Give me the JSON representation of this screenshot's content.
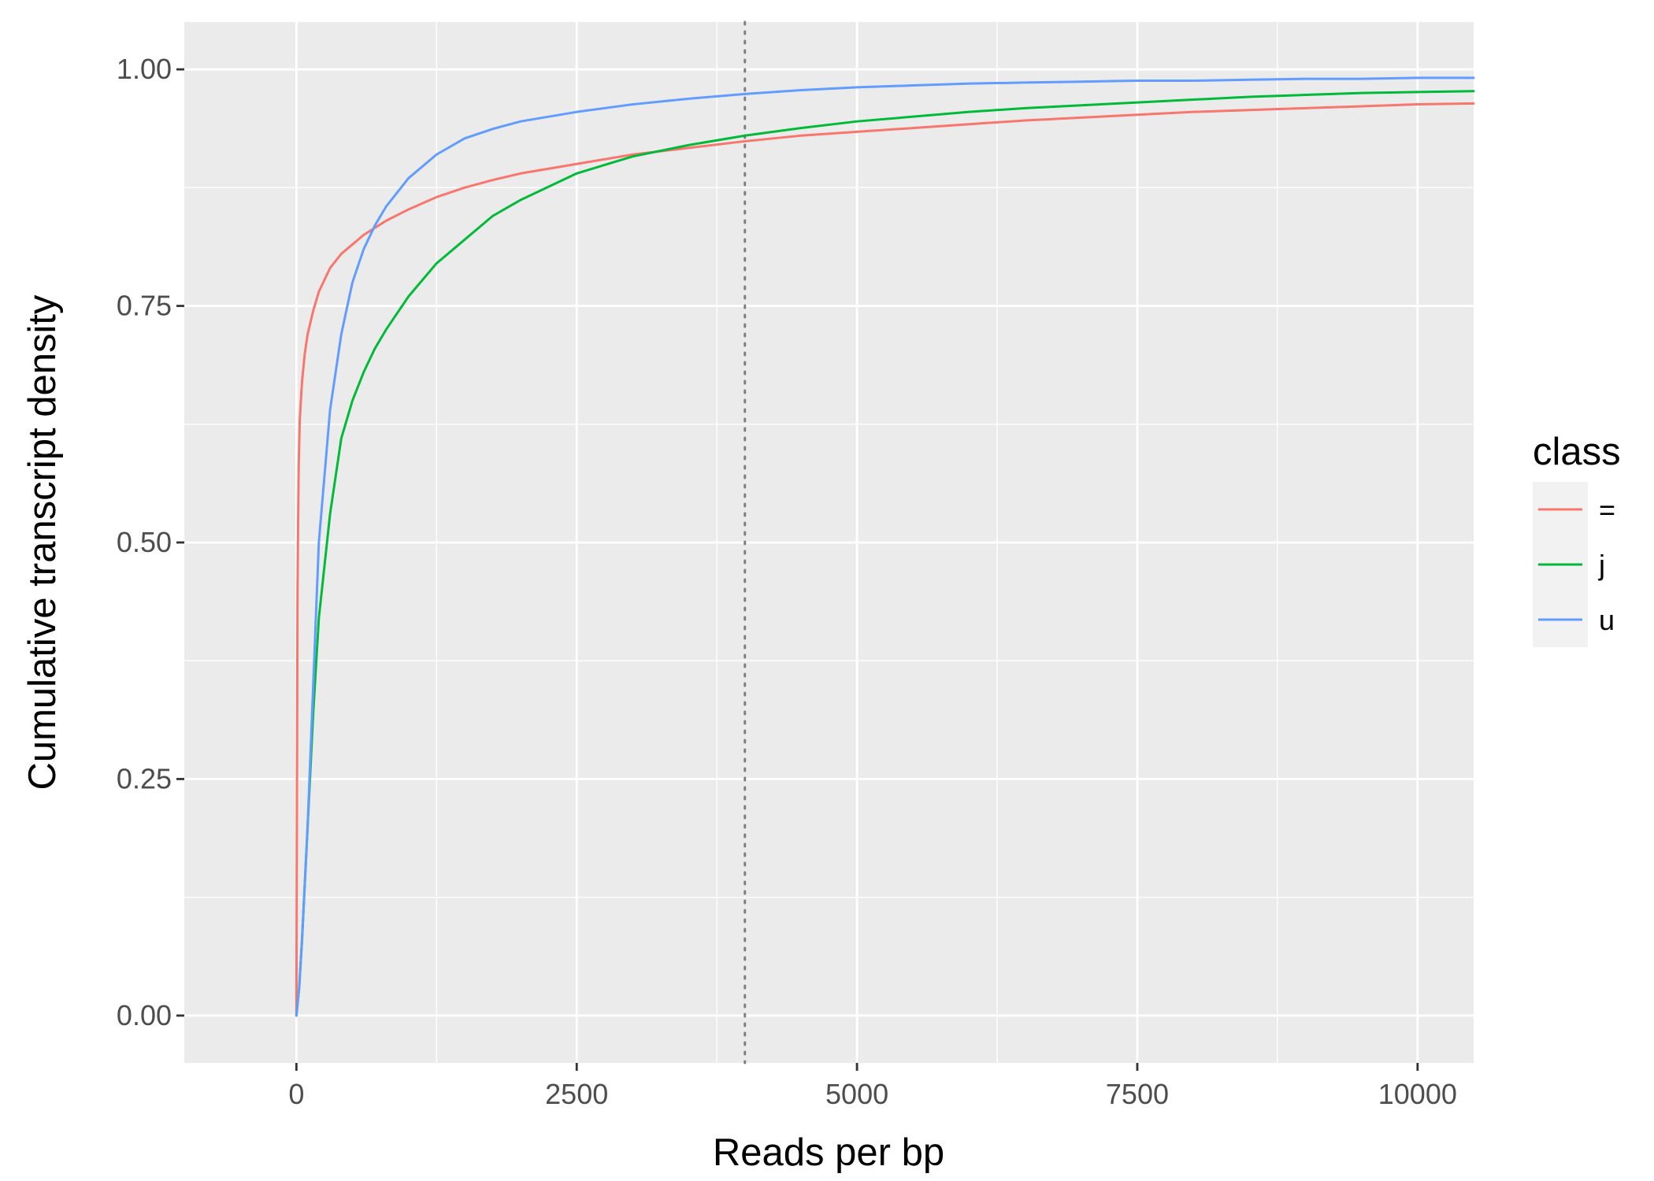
{
  "chart_data": {
    "type": "line",
    "title": "",
    "xlabel": "Reads per bp",
    "ylabel": "Cumulative transcript density",
    "xlim": [
      -1000,
      10500
    ],
    "ylim": [
      -0.05,
      1.05
    ],
    "x_ticks": [
      0,
      2500,
      5000,
      7500,
      10000
    ],
    "x_tick_labels": [
      "0",
      "2500",
      "5000",
      "7500",
      "10000"
    ],
    "y_ticks": [
      0,
      0.25,
      0.5,
      0.75,
      1.0
    ],
    "y_tick_labels": [
      "0.00",
      "0.25",
      "0.50",
      "0.75",
      "1.00"
    ],
    "grid": true,
    "panel_background": "#ebebeb",
    "reference_line": {
      "orientation": "vertical",
      "x": 4000,
      "style": "dotted",
      "color": "#7f7f7f"
    },
    "legend": {
      "title": "class",
      "position": "right"
    },
    "series": [
      {
        "name": "=",
        "color": "#f8766d",
        "x": [
          0,
          5,
          10,
          20,
          30,
          50,
          75,
          100,
          150,
          200,
          300,
          400,
          500,
          600,
          800,
          1000,
          1250,
          1500,
          1750,
          2000,
          2500,
          3000,
          3500,
          4000,
          4500,
          5000,
          5500,
          6000,
          6500,
          7000,
          7500,
          8000,
          8500,
          9000,
          9500,
          10000,
          10500
        ],
        "y": [
          0,
          0.25,
          0.45,
          0.58,
          0.63,
          0.67,
          0.7,
          0.72,
          0.745,
          0.765,
          0.79,
          0.805,
          0.815,
          0.825,
          0.84,
          0.852,
          0.865,
          0.875,
          0.883,
          0.89,
          0.9,
          0.91,
          0.917,
          0.924,
          0.93,
          0.934,
          0.938,
          0.942,
          0.946,
          0.949,
          0.952,
          0.955,
          0.957,
          0.959,
          0.961,
          0.963,
          0.964
        ]
      },
      {
        "name": "j",
        "color": "#00ba38",
        "x": [
          0,
          25,
          50,
          100,
          150,
          200,
          300,
          400,
          500,
          600,
          700,
          800,
          1000,
          1250,
          1500,
          1750,
          2000,
          2500,
          3000,
          3500,
          4000,
          4500,
          5000,
          5500,
          6000,
          6500,
          7000,
          7500,
          8000,
          8500,
          9000,
          9500,
          10000,
          10500
        ],
        "y": [
          0,
          0.03,
          0.08,
          0.2,
          0.32,
          0.42,
          0.53,
          0.61,
          0.65,
          0.68,
          0.705,
          0.725,
          0.76,
          0.795,
          0.82,
          0.845,
          0.862,
          0.89,
          0.908,
          0.92,
          0.93,
          0.938,
          0.945,
          0.95,
          0.955,
          0.959,
          0.962,
          0.965,
          0.968,
          0.971,
          0.973,
          0.975,
          0.976,
          0.977
        ]
      },
      {
        "name": "u",
        "color": "#619cff",
        "x": [
          0,
          25,
          50,
          100,
          150,
          200,
          300,
          400,
          500,
          600,
          700,
          800,
          900,
          1000,
          1250,
          1500,
          1750,
          2000,
          2500,
          3000,
          3500,
          4000,
          4500,
          5000,
          5500,
          6000,
          6500,
          7000,
          7500,
          8000,
          8500,
          9000,
          9500,
          10000,
          10500
        ],
        "y": [
          0,
          0.03,
          0.08,
          0.2,
          0.35,
          0.5,
          0.64,
          0.72,
          0.775,
          0.81,
          0.835,
          0.855,
          0.87,
          0.885,
          0.91,
          0.927,
          0.937,
          0.945,
          0.955,
          0.963,
          0.969,
          0.974,
          0.978,
          0.981,
          0.983,
          0.985,
          0.986,
          0.987,
          0.988,
          0.988,
          0.989,
          0.99,
          0.99,
          0.991,
          0.991
        ]
      }
    ]
  }
}
